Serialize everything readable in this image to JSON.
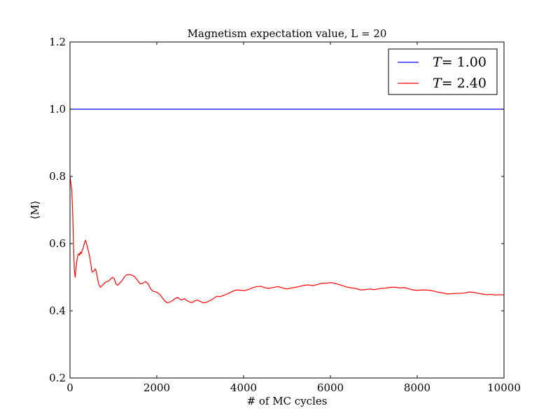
{
  "chart_data": {
    "type": "line",
    "title": "Magnetism expectation value, L = 20",
    "xlabel": "# of MC cycles",
    "ylabel": "⟨M⟩",
    "xlim": [
      0,
      10000
    ],
    "ylim": [
      0.2,
      1.2
    ],
    "xticks": [
      0,
      2000,
      4000,
      6000,
      8000,
      10000
    ],
    "xtick_labels": [
      "0",
      "2000",
      "4000",
      "6000",
      "8000",
      "10000"
    ],
    "yticks": [
      0.2,
      0.4,
      0.6,
      0.8,
      1.0,
      1.2
    ],
    "ytick_labels": [
      "0.2",
      "0.4",
      "0.6",
      "0.8",
      "1.0",
      "1.2"
    ],
    "grid": false,
    "legend_position": "top-right",
    "series": [
      {
        "name": "T= 1.00",
        "name_symbol": "T",
        "name_rest": "= 1.00",
        "color": "#0000ff",
        "points": [
          [
            0,
            1.0
          ],
          [
            10000,
            1.0
          ]
        ]
      },
      {
        "name": "T= 2.40",
        "name_symbol": "T",
        "name_rest": "= 2.40",
        "color": "#ff0000",
        "points": [
          [
            0,
            0.8
          ],
          [
            20,
            0.78
          ],
          [
            40,
            0.76
          ],
          [
            60,
            0.7
          ],
          [
            80,
            0.6
          ],
          [
            100,
            0.52
          ],
          [
            120,
            0.5
          ],
          [
            140,
            0.53
          ],
          [
            160,
            0.55
          ],
          [
            180,
            0.565
          ],
          [
            200,
            0.57
          ],
          [
            220,
            0.565
          ],
          [
            240,
            0.575
          ],
          [
            260,
            0.57
          ],
          [
            280,
            0.58
          ],
          [
            300,
            0.585
          ],
          [
            320,
            0.595
          ],
          [
            340,
            0.605
          ],
          [
            360,
            0.61
          ],
          [
            380,
            0.6
          ],
          [
            400,
            0.59
          ],
          [
            440,
            0.57
          ],
          [
            480,
            0.54
          ],
          [
            500,
            0.52
          ],
          [
            520,
            0.515
          ],
          [
            560,
            0.52
          ],
          [
            580,
            0.525
          ],
          [
            600,
            0.52
          ],
          [
            630,
            0.5
          ],
          [
            660,
            0.48
          ],
          [
            700,
            0.47
          ],
          [
            740,
            0.475
          ],
          [
            780,
            0.48
          ],
          [
            820,
            0.485
          ],
          [
            860,
            0.487
          ],
          [
            900,
            0.49
          ],
          [
            940,
            0.495
          ],
          [
            980,
            0.5
          ],
          [
            1020,
            0.495
          ],
          [
            1060,
            0.48
          ],
          [
            1100,
            0.476
          ],
          [
            1150,
            0.483
          ],
          [
            1200,
            0.49
          ],
          [
            1250,
            0.5
          ],
          [
            1300,
            0.507
          ],
          [
            1350,
            0.508
          ],
          [
            1400,
            0.507
          ],
          [
            1450,
            0.505
          ],
          [
            1500,
            0.5
          ],
          [
            1560,
            0.49
          ],
          [
            1620,
            0.48
          ],
          [
            1680,
            0.482
          ],
          [
            1740,
            0.487
          ],
          [
            1800,
            0.48
          ],
          [
            1860,
            0.465
          ],
          [
            1920,
            0.458
          ],
          [
            2000,
            0.455
          ],
          [
            2060,
            0.45
          ],
          [
            2120,
            0.44
          ],
          [
            2180,
            0.43
          ],
          [
            2240,
            0.424
          ],
          [
            2300,
            0.426
          ],
          [
            2360,
            0.43
          ],
          [
            2420,
            0.436
          ],
          [
            2480,
            0.44
          ],
          [
            2560,
            0.432
          ],
          [
            2640,
            0.436
          ],
          [
            2700,
            0.43
          ],
          [
            2760,
            0.426
          ],
          [
            2820,
            0.425
          ],
          [
            2880,
            0.43
          ],
          [
            2940,
            0.432
          ],
          [
            3000,
            0.428
          ],
          [
            3060,
            0.424
          ],
          [
            3140,
            0.425
          ],
          [
            3220,
            0.43
          ],
          [
            3300,
            0.436
          ],
          [
            3380,
            0.443
          ],
          [
            3460,
            0.442
          ],
          [
            3540,
            0.446
          ],
          [
            3620,
            0.45
          ],
          [
            3700,
            0.455
          ],
          [
            3780,
            0.46
          ],
          [
            3860,
            0.462
          ],
          [
            3940,
            0.461
          ],
          [
            4020,
            0.46
          ],
          [
            4100,
            0.463
          ],
          [
            4200,
            0.468
          ],
          [
            4300,
            0.472
          ],
          [
            4400,
            0.473
          ],
          [
            4500,
            0.468
          ],
          [
            4600,
            0.467
          ],
          [
            4700,
            0.47
          ],
          [
            4800,
            0.472
          ],
          [
            4900,
            0.468
          ],
          [
            5000,
            0.465
          ],
          [
            5100,
            0.468
          ],
          [
            5200,
            0.47
          ],
          [
            5300,
            0.473
          ],
          [
            5400,
            0.476
          ],
          [
            5500,
            0.477
          ],
          [
            5600,
            0.475
          ],
          [
            5700,
            0.478
          ],
          [
            5800,
            0.482
          ],
          [
            5900,
            0.482
          ],
          [
            6000,
            0.484
          ],
          [
            6100,
            0.482
          ],
          [
            6200,
            0.478
          ],
          [
            6300,
            0.474
          ],
          [
            6400,
            0.47
          ],
          [
            6500,
            0.468
          ],
          [
            6600,
            0.466
          ],
          [
            6700,
            0.462
          ],
          [
            6800,
            0.463
          ],
          [
            6900,
            0.465
          ],
          [
            7000,
            0.463
          ],
          [
            7100,
            0.465
          ],
          [
            7200,
            0.467
          ],
          [
            7300,
            0.468
          ],
          [
            7400,
            0.47
          ],
          [
            7500,
            0.47
          ],
          [
            7600,
            0.468
          ],
          [
            7700,
            0.469
          ],
          [
            7800,
            0.466
          ],
          [
            7900,
            0.462
          ],
          [
            8000,
            0.461
          ],
          [
            8100,
            0.462
          ],
          [
            8200,
            0.462
          ],
          [
            8300,
            0.461
          ],
          [
            8400,
            0.458
          ],
          [
            8500,
            0.455
          ],
          [
            8600,
            0.453
          ],
          [
            8700,
            0.45
          ],
          [
            8800,
            0.451
          ],
          [
            8900,
            0.452
          ],
          [
            9000,
            0.452
          ],
          [
            9100,
            0.453
          ],
          [
            9200,
            0.456
          ],
          [
            9300,
            0.455
          ],
          [
            9400,
            0.452
          ],
          [
            9500,
            0.45
          ],
          [
            9600,
            0.448
          ],
          [
            9700,
            0.449
          ],
          [
            9800,
            0.447
          ],
          [
            9900,
            0.448
          ],
          [
            10000,
            0.447
          ]
        ]
      }
    ]
  }
}
